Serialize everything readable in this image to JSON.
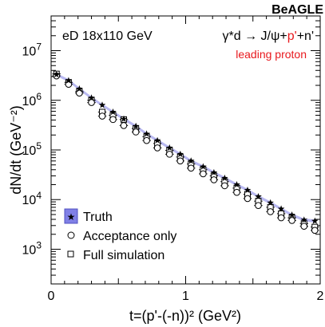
{
  "chart_data": {
    "type": "scatter",
    "logo": "BeAGLE",
    "beam_label": "eD 18x110 GeV",
    "process_label": {
      "before": "γ*d → J/ψ+",
      "highlight": "p'",
      "after": "+n'"
    },
    "selection_label": "leading proton",
    "xlabel": "t=(p'-(-n))² (GeV²)",
    "ylabel": "dN/dt (GeV⁻²)",
    "x_scale": "linear",
    "y_scale": "log",
    "xlim": [
      0,
      2
    ],
    "ylim": [
      200,
      50000000
    ],
    "x_ticks": [
      "0",
      "1",
      "2"
    ],
    "y_ticks": [
      {
        "value": 1000,
        "base": "10",
        "exp": "3"
      },
      {
        "value": 10000,
        "base": "10",
        "exp": "4"
      },
      {
        "value": 100000,
        "base": "10",
        "exp": "5"
      },
      {
        "value": 1000000,
        "base": "10",
        "exp": "6"
      },
      {
        "value": 10000000,
        "base": "10",
        "exp": "7"
      }
    ],
    "legend_position": "bottom-left",
    "series": [
      {
        "name": "Truth",
        "marker": "star",
        "band_color": "#6b6bd9",
        "x": [
          0.04,
          0.13,
          0.21,
          0.3,
          0.38,
          0.46,
          0.54,
          0.63,
          0.71,
          0.79,
          0.88,
          0.96,
          1.04,
          1.13,
          1.21,
          1.29,
          1.38,
          1.46,
          1.54,
          1.63,
          1.71,
          1.79,
          1.88,
          1.96
        ],
        "y": [
          3300000,
          2500000,
          1700000,
          1120000,
          800000,
          580000,
          420000,
          300000,
          210000,
          155000,
          110000,
          82000,
          60000,
          46000,
          35000,
          27000,
          20000,
          15500,
          11500,
          8600,
          6500,
          4900,
          3900,
          3700
        ]
      },
      {
        "name": "Acceptance only",
        "marker": "open-circle",
        "x": [
          0.04,
          0.13,
          0.21,
          0.3,
          0.38,
          0.46,
          0.54,
          0.63,
          0.71,
          0.79,
          0.88,
          0.96,
          1.04,
          1.13,
          1.21,
          1.29,
          1.38,
          1.46,
          1.54,
          1.63,
          1.71,
          1.79,
          1.88,
          1.96
        ],
        "y": [
          3100000,
          2100000,
          1400000,
          900000,
          480000,
          410000,
          310000,
          230000,
          155000,
          110000,
          82000,
          60000,
          43000,
          33000,
          25000,
          19000,
          14000,
          10500,
          7600,
          5700,
          4300,
          3800,
          2900,
          2400
        ]
      },
      {
        "name": "Full simulation",
        "marker": "open-square",
        "x": [
          0.04,
          0.13,
          0.21,
          0.3,
          0.38,
          0.46,
          0.54,
          0.63,
          0.71,
          0.79,
          0.88,
          0.96,
          1.04,
          1.13,
          1.21,
          1.29,
          1.38,
          1.46,
          1.54,
          1.63,
          1.71,
          1.79,
          1.88,
          1.96
        ],
        "y": [
          3400000,
          2300000,
          1500000,
          1000000,
          580000,
          500000,
          410000,
          270000,
          185000,
          135000,
          98000,
          72000,
          52000,
          40000,
          30000,
          23000,
          17000,
          12800,
          9300,
          7000,
          5200,
          4300,
          3300,
          2800
        ]
      }
    ]
  }
}
